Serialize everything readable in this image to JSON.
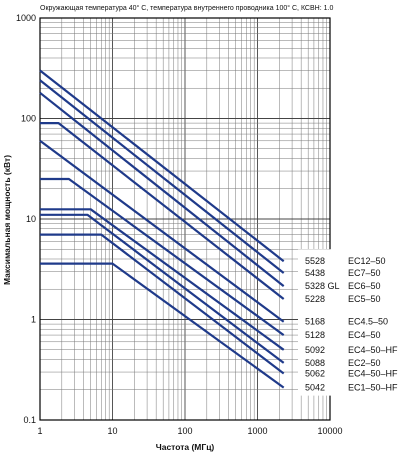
{
  "chart_data": {
    "type": "line",
    "note": "Окружающая температура 40° C, температура внутреннего проводника 100° C, КСВН: 1.0",
    "xlabel": "Частота (МГц)",
    "ylabel": "Максимальная мощность (кВт)",
    "x_scale": "log",
    "y_scale": "log",
    "xlim": [
      1,
      10000
    ],
    "ylim": [
      0.1,
      1000
    ],
    "x_ticks": [
      1,
      10,
      100,
      1000,
      10000
    ],
    "x_tick_labels": [
      "1",
      "10",
      "100",
      "1000",
      "10000"
    ],
    "y_ticks": [
      0.1,
      1,
      10,
      100,
      1000
    ],
    "y_tick_labels": [
      "0.1",
      "1",
      "10",
      "100",
      "1000"
    ],
    "grid": true,
    "line_color": "#1f3a8a",
    "series": [
      {
        "model": "5528",
        "connector": "EC12–50",
        "x": [
          1,
          2300
        ],
        "y": [
          300,
          3.8
        ]
      },
      {
        "model": "5438",
        "connector": "EC7–50",
        "x": [
          1,
          2300
        ],
        "y": [
          240,
          2.9
        ]
      },
      {
        "model": "5328 GL",
        "connector": "EC6–50",
        "x": [
          1,
          2300
        ],
        "y": [
          180,
          2.15
        ]
      },
      {
        "model": "5228",
        "connector": "EC5–50",
        "x": [
          1,
          1.8,
          2300
        ],
        "y": [
          90,
          90,
          1.6
        ]
      },
      {
        "model": "5168",
        "connector": "EC4.5–50",
        "x": [
          1,
          2300
        ],
        "y": [
          60,
          0.95
        ]
      },
      {
        "model": "5128",
        "connector": "EC4–50",
        "x": [
          1,
          2.5,
          2300
        ],
        "y": [
          25,
          25,
          0.7
        ]
      },
      {
        "model": "5092",
        "connector": "EC4–50–HF",
        "x": [
          1,
          5,
          2300
        ],
        "y": [
          12.5,
          12.5,
          0.5
        ]
      },
      {
        "model": "5088",
        "connector": "EC2–50",
        "x": [
          1,
          4.5,
          2300
        ],
        "y": [
          11,
          11,
          0.37
        ]
      },
      {
        "model": "5062",
        "connector": "EC4–50–HF",
        "x": [
          1,
          7,
          2300
        ],
        "y": [
          7,
          7,
          0.29
        ]
      },
      {
        "model": "5042",
        "connector": "EC1–50–HF",
        "x": [
          1,
          10,
          2300
        ],
        "y": [
          3.6,
          3.6,
          0.21
        ]
      }
    ]
  }
}
